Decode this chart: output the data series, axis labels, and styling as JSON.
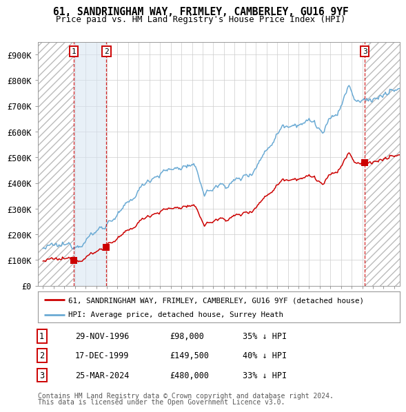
{
  "title_line1": "61, SANDRINGHAM WAY, FRIMLEY, CAMBERLEY, GU16 9YF",
  "title_line2": "Price paid vs. HM Land Registry's House Price Index (HPI)",
  "ylim": [
    0,
    950000
  ],
  "yticks": [
    0,
    100000,
    200000,
    300000,
    400000,
    500000,
    600000,
    700000,
    800000,
    900000
  ],
  "ytick_labels": [
    "£0",
    "£100K",
    "£200K",
    "£300K",
    "£400K",
    "£500K",
    "£600K",
    "£700K",
    "£800K",
    "£900K"
  ],
  "xlim_start": 1993.5,
  "xlim_end": 2027.5,
  "hpi_color": "#6aaad4",
  "price_color": "#cc0000",
  "marker_color": "#cc0000",
  "vline_color": "#cc0000",
  "bg_shade_color": "#d6e4f2",
  "transactions": [
    {
      "label": "1",
      "date": 1996.91,
      "price": 98000
    },
    {
      "label": "2",
      "date": 1999.96,
      "price": 149500
    },
    {
      "label": "3",
      "date": 2024.23,
      "price": 480000
    }
  ],
  "legend_line1": "61, SANDRINGHAM WAY, FRIMLEY, CAMBERLEY, GU16 9YF (detached house)",
  "legend_line2": "HPI: Average price, detached house, Surrey Heath",
  "footer_line1": "Contains HM Land Registry data © Crown copyright and database right 2024.",
  "footer_line2": "This data is licensed under the Open Government Licence v3.0.",
  "table_rows": [
    {
      "num": "1",
      "date": "29-NOV-1996",
      "price": "£98,000",
      "pct": "35% ↓ HPI"
    },
    {
      "num": "2",
      "date": "17-DEC-1999",
      "price": "£149,500",
      "pct": "40% ↓ HPI"
    },
    {
      "num": "3",
      "date": "25-MAR-2024",
      "price": "£480,000",
      "pct": "33% ↓ HPI"
    }
  ]
}
